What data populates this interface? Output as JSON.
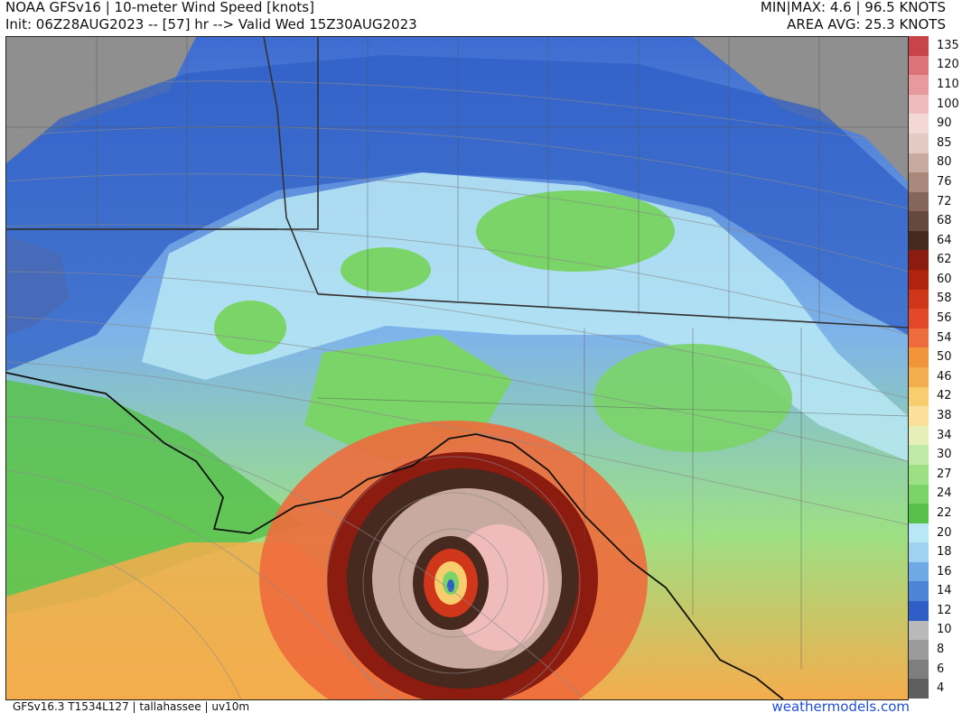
{
  "header": {
    "line1_left": "NOAA GFSv16 | 10-meter Wind Speed [knots]",
    "line2_left": "Init: 06Z28AUG2023 -- [57] hr --> Valid Wed 15Z30AUG2023",
    "line1_right": "MIN|MAX: 4.6 | 96.5 KNOTS",
    "line2_right": "AREA AVG: 25.3 KNOTS"
  },
  "footer": {
    "left": "GFSv16.3 T1534L127 | tallahassee | uv10m",
    "right": "weathermodels.com"
  },
  "colorbar": {
    "units": "knots",
    "labels": [
      "135",
      "120",
      "110",
      "100",
      "90",
      "85",
      "80",
      "76",
      "72",
      "68",
      "64",
      "62",
      "60",
      "58",
      "56",
      "54",
      "50",
      "46",
      "42",
      "38",
      "34",
      "30",
      "27",
      "24",
      "22",
      "20",
      "18",
      "16",
      "14",
      "12",
      "10",
      "8",
      "6",
      "4"
    ],
    "colors": {
      "135": "#c9444a",
      "120": "#dd7378",
      "110": "#e7999b",
      "100": "#efbcbb",
      "90": "#f3d8d4",
      "85": "#e3cbc4",
      "80": "#c9aaa0",
      "76": "#a9877b",
      "72": "#86665a",
      "68": "#66493e",
      "64": "#46291f",
      "62": "#8c1b10",
      "60": "#b0230f",
      "58": "#d0361a",
      "56": "#e4482b",
      "54": "#ee6c3c",
      "50": "#f29439",
      "46": "#f4ad4c",
      "42": "#f8cd6d",
      "38": "#fbe09a",
      "34": "#e6efb7",
      "30": "#bfeaa6",
      "27": "#9de084",
      "24": "#7ad467",
      "22": "#58c14c",
      "20": "#b8e7f5",
      "18": "#9fd2f0",
      "16": "#6ea8e5",
      "14": "#4c84d8",
      "12": "#2f5fc6",
      "10": "#b9b9b9",
      "8": "#9b9b9b",
      "6": "#7e7e7e",
      "4": "#5f5f5f"
    }
  },
  "map": {
    "region": "tallahassee",
    "storm_peak_knots": 96.5,
    "colors": {
      "land_low": "#5b83d9",
      "land_mid": "#b8e7f5",
      "land_high": "#7ad467",
      "gray": "#8f8f8f",
      "ocean": "#9de084",
      "storm_outer": "#d0361a",
      "storm_inner": "#5a3a31",
      "eye": "#2f5fc6"
    }
  }
}
